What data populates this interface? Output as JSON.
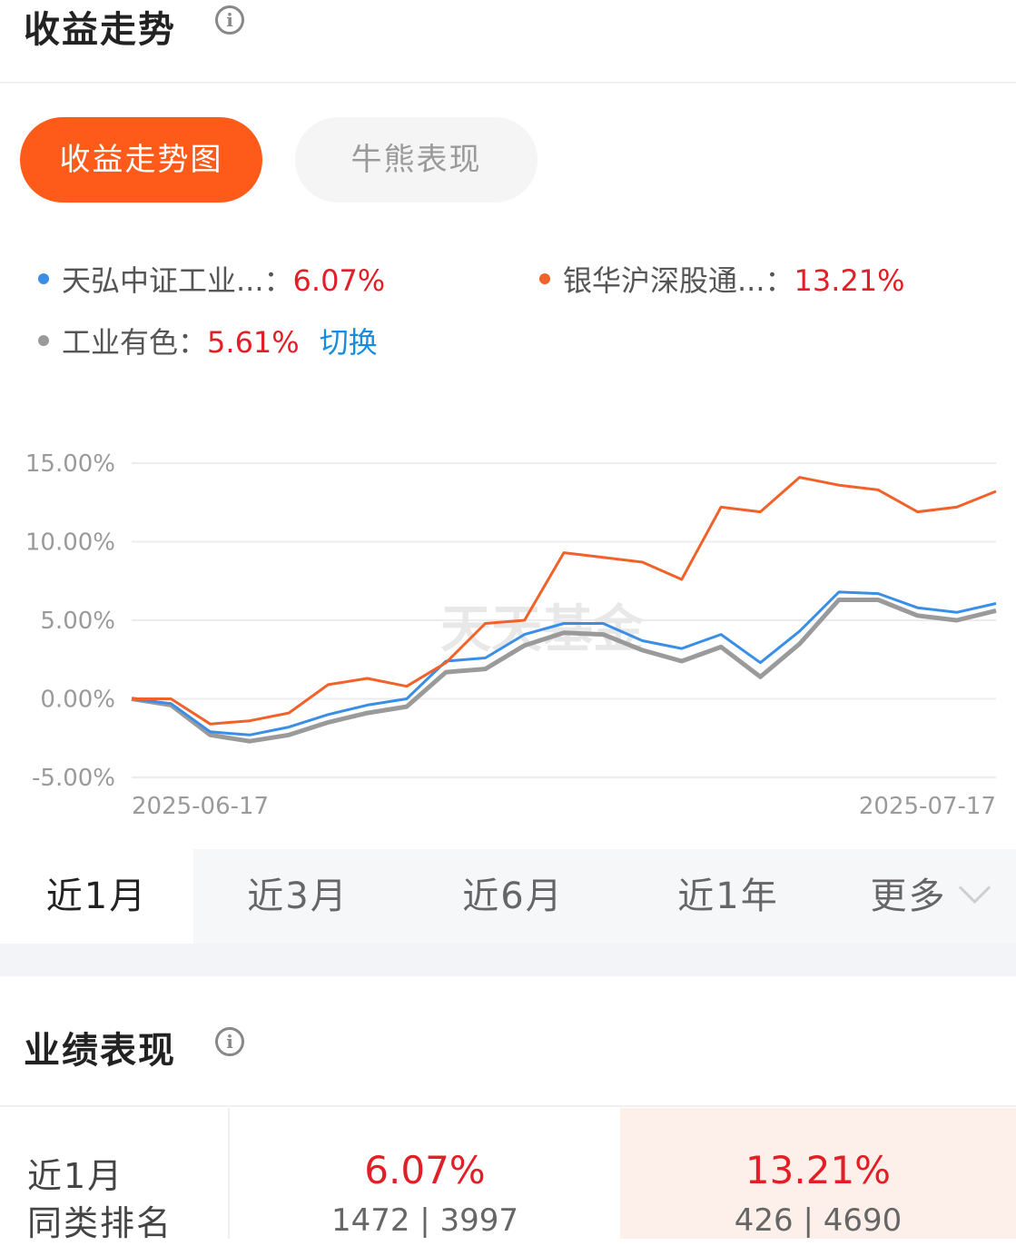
{
  "trend_section": {
    "title": "收益走势"
  },
  "tabs": [
    {
      "label": "收益走势图",
      "active": true
    },
    {
      "label": "牛熊表现",
      "active": false
    }
  ],
  "legend": [
    {
      "name": "天弘中证工业...",
      "value": "6.07%",
      "color": "#3a8ee6"
    },
    {
      "name": "银华沪深股通...",
      "value": "13.21%",
      "color": "#f0622a"
    },
    {
      "name": "工业有色",
      "value": "5.61%",
      "color": "#9a9a9a"
    }
  ],
  "legend_separator": "：",
  "switch_label": "切换",
  "watermark": "天天基金",
  "chart_data": {
    "type": "line",
    "y_tick_labels": [
      "15.00%",
      "10.00%",
      "5.00%",
      "0.00%",
      "-5.00%"
    ],
    "y_ticks": [
      15,
      10,
      5,
      0,
      -5
    ],
    "ylim": [
      -5,
      15
    ],
    "x_tick_labels": [
      "2025-06-17",
      "2025-07-17"
    ],
    "grid": true,
    "series": [
      {
        "name": "天弘中证工业...",
        "color": "#3a8ee6",
        "values": [
          0.0,
          -0.3,
          -2.1,
          -2.3,
          -1.8,
          -1.0,
          -0.4,
          0.0,
          2.4,
          2.6,
          4.1,
          4.8,
          4.8,
          3.7,
          3.2,
          4.1,
          2.3,
          4.3,
          6.8,
          6.7,
          5.8,
          5.5,
          6.07
        ]
      },
      {
        "name": "银华沪深股通...",
        "color": "#f0622a",
        "values": [
          0.0,
          0.0,
          -1.6,
          -1.4,
          -0.9,
          0.9,
          1.3,
          0.8,
          2.3,
          4.8,
          5.0,
          9.3,
          9.0,
          8.7,
          7.6,
          12.2,
          11.9,
          14.1,
          13.6,
          13.3,
          11.9,
          12.2,
          13.21
        ]
      },
      {
        "name": "工业有色",
        "color": "#9a9a9a",
        "values": [
          0.0,
          -0.4,
          -2.3,
          -2.7,
          -2.3,
          -1.5,
          -0.9,
          -0.5,
          1.7,
          1.9,
          3.4,
          4.2,
          4.1,
          3.1,
          2.4,
          3.3,
          1.4,
          3.5,
          6.3,
          6.3,
          5.3,
          5.0,
          5.61
        ]
      }
    ]
  },
  "periods": [
    {
      "label": "近1月",
      "active": true
    },
    {
      "label": "近3月",
      "active": false
    },
    {
      "label": "近6月",
      "active": false
    },
    {
      "label": "近1年",
      "active": false
    },
    {
      "label": "更多",
      "active": false
    }
  ],
  "performance_section": {
    "title": "业绩表现"
  },
  "performance": {
    "row_label_line1": "近1月",
    "row_label_line2": "同类排名",
    "columns": [
      {
        "value": "6.07%",
        "rank": "1472 | 3997"
      },
      {
        "value": "13.21%",
        "rank": "426 | 4690"
      }
    ]
  }
}
